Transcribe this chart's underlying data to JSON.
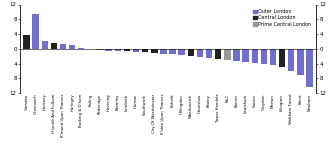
{
  "categories": [
    "Camden",
    "Greenwich",
    "Hackney",
    "H'smith And Fulham",
    "R'mond Upon Thames",
    "Haringey",
    "Barking & D'ham",
    "Ealing",
    "Redbridge",
    "Havering",
    "Bromley",
    "Lambeth",
    "Harrow",
    "Southwark",
    "City Of Westminster",
    "K'ston Upon Thames",
    "Enfield",
    "Hillingdon",
    "Wandsworth",
    "Hounslow",
    "Bexley",
    "Tower Hamlets",
    "K&C",
    "Barnet",
    "Lewisham",
    "Sutton",
    "Croydon",
    "Merton",
    "Islington",
    "Waltham Forest",
    "Brent",
    "Newham"
  ],
  "values": [
    3.8,
    9.5,
    2.0,
    1.5,
    1.2,
    1.0,
    0.1,
    -0.2,
    -0.4,
    -0.5,
    -0.6,
    -0.7,
    -0.9,
    -1.0,
    -1.1,
    -1.3,
    -1.5,
    -1.8,
    -2.0,
    -2.2,
    -2.5,
    -2.8,
    -3.0,
    -3.2,
    -3.5,
    -3.8,
    -4.0,
    -4.3,
    -5.0,
    -6.0,
    -7.0,
    -10.5
  ],
  "bar_types": [
    "central",
    "outer",
    "outer",
    "central",
    "outer",
    "outer",
    "outer",
    "outer",
    "outer",
    "outer",
    "outer",
    "central",
    "outer",
    "central",
    "central",
    "outer",
    "outer",
    "outer",
    "central",
    "outer",
    "outer",
    "central",
    "prime",
    "outer",
    "outer",
    "outer",
    "outer",
    "outer",
    "central",
    "outer",
    "outer",
    "outer"
  ],
  "outer_color": "#7070cc",
  "central_color": "#222222",
  "prime_color": "#999999",
  "ylim": [
    -12,
    12
  ],
  "yticks": [
    -12,
    -8,
    -4,
    0,
    4,
    8,
    12
  ],
  "legend_labels": [
    "Outer London",
    "Central London",
    "Prime Central London"
  ],
  "legend_colors": [
    "#7070cc",
    "#222222",
    "#999999"
  ]
}
